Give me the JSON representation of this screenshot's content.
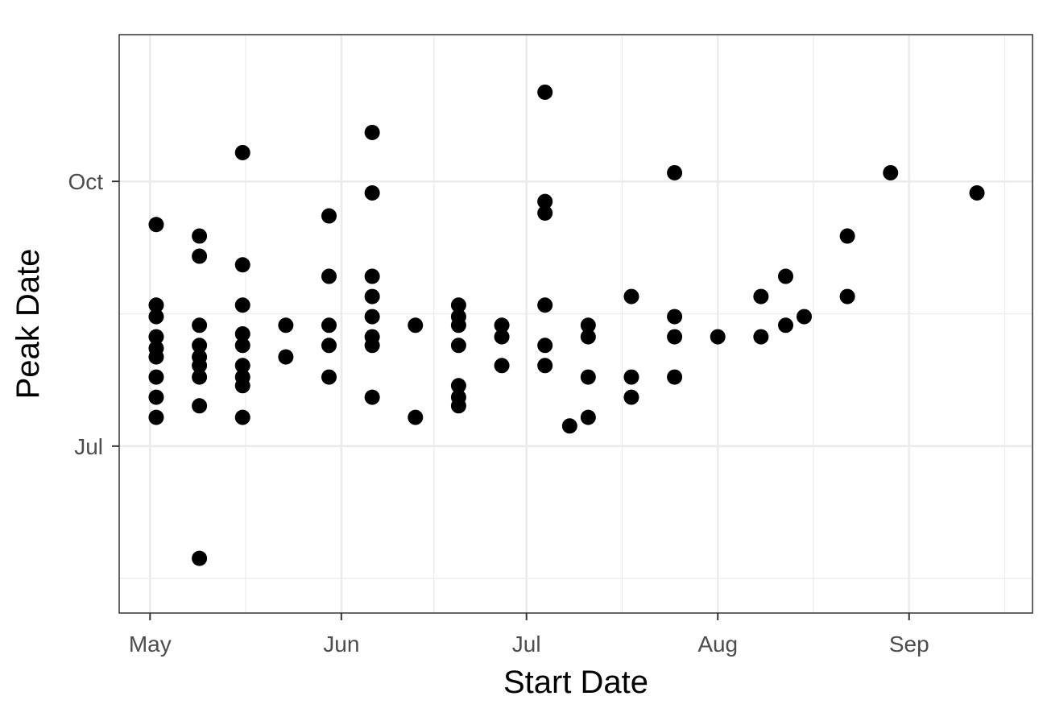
{
  "chart_data": {
    "type": "scatter",
    "title": "",
    "xlabel": "Start Date",
    "ylabel": "Peak Date",
    "x_unit": "day of year",
    "y_unit": "day of year",
    "xlim": [
      116,
      264
    ],
    "ylim": [
      124,
      325
    ],
    "grid": true,
    "x_ticks": [
      {
        "value": 121,
        "label": "May"
      },
      {
        "value": 152,
        "label": "Jun"
      },
      {
        "value": 182,
        "label": "Jul"
      },
      {
        "value": 213,
        "label": "Aug"
      },
      {
        "value": 244,
        "label": "Sep"
      }
    ],
    "x_minor_ticks": [
      136.5,
      167,
      197.5,
      228.5,
      259.5
    ],
    "y_ticks": [
      {
        "value": 182,
        "label": "Jul"
      },
      {
        "value": 274,
        "label": "Oct"
      }
    ],
    "y_minor_ticks": [
      136,
      228
    ],
    "point_color": "#000000",
    "points": [
      {
        "x": 122,
        "y": 259
      },
      {
        "x": 122,
        "y": 231
      },
      {
        "x": 122,
        "y": 227
      },
      {
        "x": 122,
        "y": 220
      },
      {
        "x": 122,
        "y": 216
      },
      {
        "x": 122,
        "y": 213
      },
      {
        "x": 122,
        "y": 206
      },
      {
        "x": 122,
        "y": 199
      },
      {
        "x": 122,
        "y": 192
      },
      {
        "x": 129,
        "y": 255
      },
      {
        "x": 129,
        "y": 248
      },
      {
        "x": 129,
        "y": 224
      },
      {
        "x": 129,
        "y": 217
      },
      {
        "x": 129,
        "y": 213
      },
      {
        "x": 129,
        "y": 210
      },
      {
        "x": 129,
        "y": 206
      },
      {
        "x": 129,
        "y": 196
      },
      {
        "x": 129,
        "y": 143
      },
      {
        "x": 136,
        "y": 284
      },
      {
        "x": 136,
        "y": 245
      },
      {
        "x": 136,
        "y": 231
      },
      {
        "x": 136,
        "y": 221
      },
      {
        "x": 136,
        "y": 217
      },
      {
        "x": 136,
        "y": 210
      },
      {
        "x": 136,
        "y": 206
      },
      {
        "x": 136,
        "y": 203
      },
      {
        "x": 136,
        "y": 192
      },
      {
        "x": 143,
        "y": 224
      },
      {
        "x": 143,
        "y": 213
      },
      {
        "x": 150,
        "y": 262
      },
      {
        "x": 150,
        "y": 241
      },
      {
        "x": 150,
        "y": 224
      },
      {
        "x": 150,
        "y": 217
      },
      {
        "x": 150,
        "y": 206
      },
      {
        "x": 157,
        "y": 291
      },
      {
        "x": 157,
        "y": 270
      },
      {
        "x": 157,
        "y": 241
      },
      {
        "x": 157,
        "y": 234
      },
      {
        "x": 157,
        "y": 227
      },
      {
        "x": 157,
        "y": 220
      },
      {
        "x": 157,
        "y": 217
      },
      {
        "x": 157,
        "y": 199
      },
      {
        "x": 164,
        "y": 224
      },
      {
        "x": 164,
        "y": 192
      },
      {
        "x": 171,
        "y": 231
      },
      {
        "x": 171,
        "y": 227
      },
      {
        "x": 171,
        "y": 224
      },
      {
        "x": 171,
        "y": 217
      },
      {
        "x": 171,
        "y": 203
      },
      {
        "x": 171,
        "y": 199
      },
      {
        "x": 171,
        "y": 196
      },
      {
        "x": 178,
        "y": 224
      },
      {
        "x": 178,
        "y": 220
      },
      {
        "x": 178,
        "y": 210
      },
      {
        "x": 185,
        "y": 305
      },
      {
        "x": 185,
        "y": 267
      },
      {
        "x": 185,
        "y": 263
      },
      {
        "x": 185,
        "y": 231
      },
      {
        "x": 185,
        "y": 217
      },
      {
        "x": 185,
        "y": 210
      },
      {
        "x": 189,
        "y": 189
      },
      {
        "x": 192,
        "y": 224
      },
      {
        "x": 192,
        "y": 220
      },
      {
        "x": 192,
        "y": 206
      },
      {
        "x": 192,
        "y": 192
      },
      {
        "x": 199,
        "y": 234
      },
      {
        "x": 199,
        "y": 206
      },
      {
        "x": 199,
        "y": 199
      },
      {
        "x": 206,
        "y": 277
      },
      {
        "x": 206,
        "y": 227
      },
      {
        "x": 206,
        "y": 220
      },
      {
        "x": 206,
        "y": 206
      },
      {
        "x": 213,
        "y": 220
      },
      {
        "x": 220,
        "y": 234
      },
      {
        "x": 220,
        "y": 220
      },
      {
        "x": 224,
        "y": 241
      },
      {
        "x": 224,
        "y": 224
      },
      {
        "x": 227,
        "y": 227
      },
      {
        "x": 234,
        "y": 255
      },
      {
        "x": 234,
        "y": 234
      },
      {
        "x": 241,
        "y": 277
      },
      {
        "x": 255,
        "y": 270
      }
    ]
  }
}
